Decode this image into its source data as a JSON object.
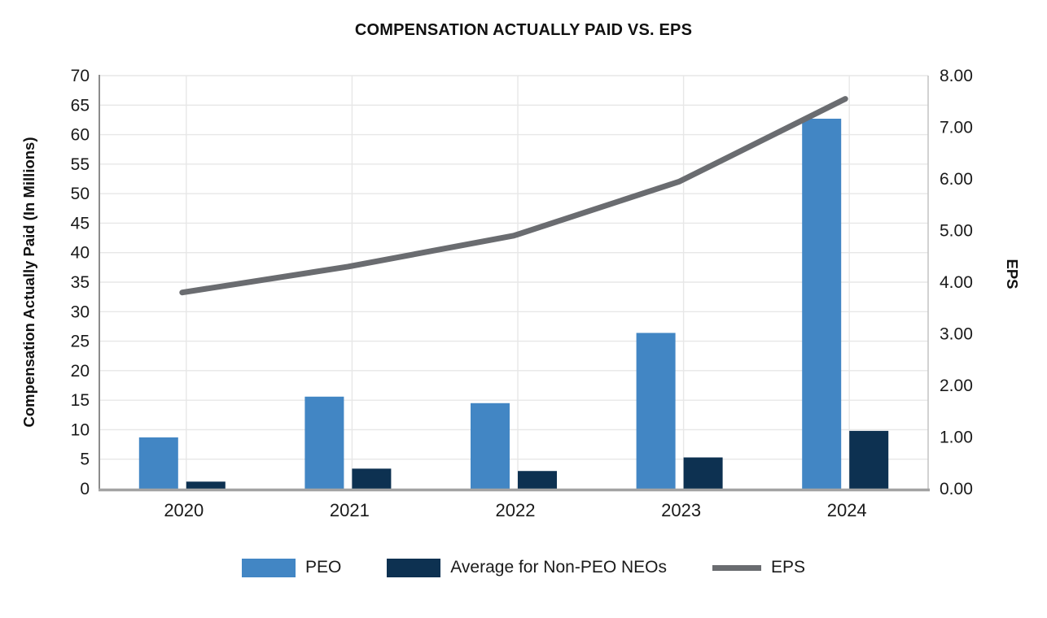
{
  "title": "COMPENSATION ACTUALLY PAID VS. EPS",
  "chart_data": {
    "type": "bar+line",
    "categories": [
      "2020",
      "2021",
      "2022",
      "2023",
      "2024"
    ],
    "series": [
      {
        "name": "PEO",
        "type": "bar",
        "axis": "left",
        "color": "#4286C4",
        "values": [
          8.7,
          15.6,
          14.5,
          26.4,
          62.7
        ]
      },
      {
        "name": "Average for Non-PEO NEOs",
        "type": "bar",
        "axis": "left",
        "color": "#0D3151",
        "values": [
          1.2,
          3.4,
          3.0,
          5.3,
          9.8
        ]
      },
      {
        "name": "EPS",
        "type": "line",
        "axis": "right",
        "color": "#6A6C70",
        "values": [
          3.8,
          4.3,
          4.9,
          5.95,
          7.55
        ]
      }
    ],
    "left_axis": {
      "label": "Compensation Actually Paid (In Millions)",
      "min": 0,
      "max": 70,
      "step": 5,
      "ticks": [
        "0",
        "5",
        "10",
        "15",
        "20",
        "25",
        "30",
        "35",
        "40",
        "45",
        "50",
        "55",
        "60",
        "65",
        "70"
      ]
    },
    "right_axis": {
      "label": "EPS",
      "min": 0,
      "max": 8,
      "step": 1,
      "decimals": 2,
      "ticks": [
        "0.00",
        "1.00",
        "2.00",
        "3.00",
        "4.00",
        "5.00",
        "6.00",
        "7.00",
        "8.00"
      ]
    },
    "grid": {
      "horizontal": true,
      "vertical": true,
      "color": "#E7E7E7"
    },
    "axis_line_color": "#9B9B9B",
    "tick_text_color": "#1a1a1a",
    "legend_position": "bottom",
    "title": "COMPENSATION ACTUALLY PAID VS. EPS"
  }
}
